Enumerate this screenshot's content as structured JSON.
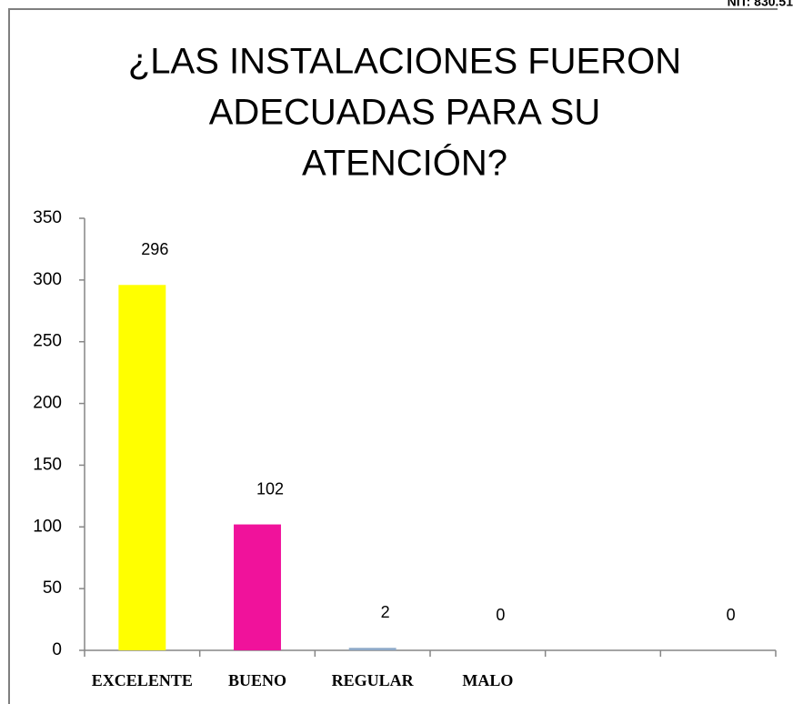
{
  "header": {
    "note": "NIT: 830.51"
  },
  "chart_data": {
    "type": "bar",
    "title": [
      "¿LAS INSTALACIONES FUERON",
      "ADECUADAS PARA SU",
      "ATENCIÓN?"
    ],
    "categories": [
      "EXCELENTE",
      "BUENO",
      "REGULAR",
      "MALO",
      null,
      null
    ],
    "values": [
      296,
      102,
      2,
      0,
      null,
      0
    ],
    "colors": [
      "#ffff00",
      "#f0129b",
      "#8ea9c8",
      "#8ea9c8",
      "#8ea9c8",
      "#8ea9c8"
    ],
    "ylim": [
      0,
      350
    ],
    "yticks": [
      0,
      50,
      100,
      150,
      200,
      250,
      300,
      350
    ],
    "grid": false
  }
}
